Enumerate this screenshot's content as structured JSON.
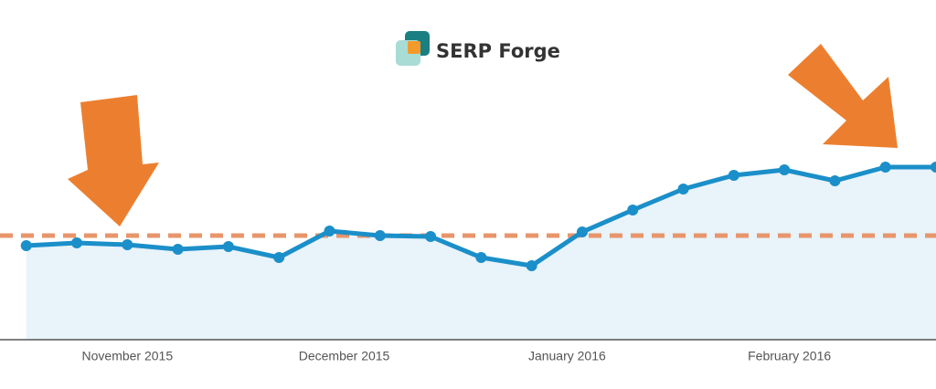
{
  "chart_data": {
    "type": "area",
    "watermark": "SERP Forge",
    "x": [
      0,
      1,
      2,
      3,
      4,
      5,
      6,
      7,
      8,
      9,
      10,
      11,
      12,
      13,
      14,
      15,
      16,
      17,
      18
    ],
    "series": [
      {
        "color": "#1b8fc9",
        "fill": "#e8f3fa",
        "values": [
          103,
          106,
          104,
          99,
          102,
          90,
          119,
          114,
          113,
          90,
          81,
          118,
          142,
          165,
          180,
          186,
          174,
          189,
          189
        ]
      }
    ],
    "reference_line": {
      "value": 114,
      "color": "#e8956b"
    },
    "xlim": [
      -0.52,
      18
    ],
    "ylim": [
      0,
      372
    ],
    "xticks": [
      {
        "value": 2,
        "label": "November 2015"
      },
      {
        "value": 6.29,
        "label": "December 2015"
      },
      {
        "value": 10.7,
        "label": "January 2016"
      },
      {
        "value": 15.1,
        "label": "February 2016"
      }
    ]
  }
}
